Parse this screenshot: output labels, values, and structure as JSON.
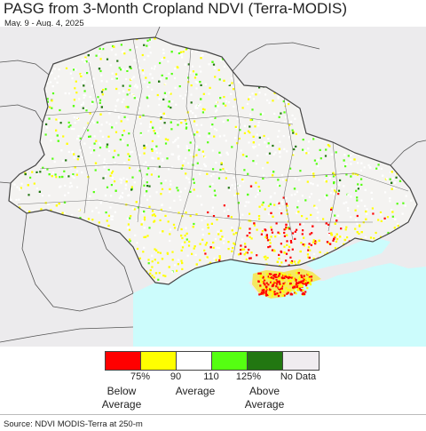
{
  "title": "PASG from 3-Month Cropland NDVI (Terra-MODIS)",
  "date_range": "May. 9 - Aug. 4, 2025",
  "legend": {
    "swatches": [
      {
        "color": "#ff0000",
        "name": "below-75"
      },
      {
        "color": "#ffff00",
        "name": "75-90"
      },
      {
        "color": "#ffffff",
        "name": "90-110"
      },
      {
        "color": "#55ff11",
        "name": "110-125"
      },
      {
        "color": "#227711",
        "name": "above-125"
      },
      {
        "color": "#f0ecf0",
        "name": "no-data"
      }
    ],
    "ticks": [
      "75%",
      "90",
      "110",
      "125%"
    ],
    "below_average": "Below\nAverage",
    "average": "Average",
    "above_average": "Above\nAverage",
    "no_data": "No Data"
  },
  "source": "Source: NDVI MODIS-Terra at 250-m",
  "colors": {
    "land": "#ecebed",
    "sea": "#ccfcfc",
    "border": "#444444"
  }
}
